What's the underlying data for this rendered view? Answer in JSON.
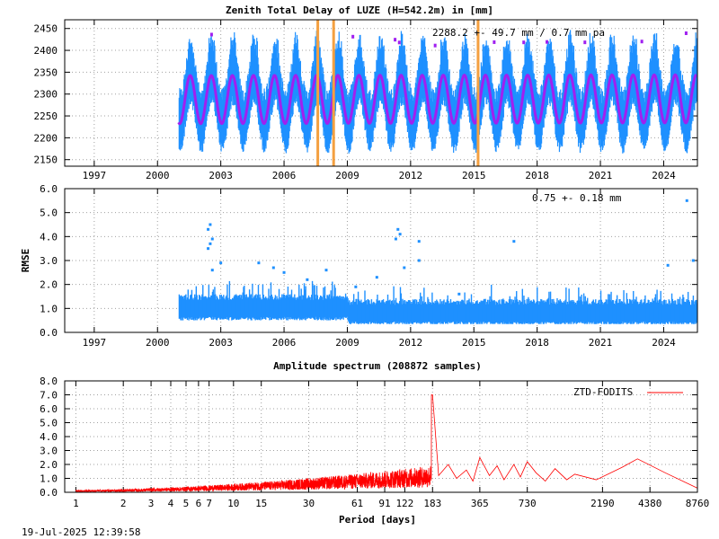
{
  "chart_data": [
    {
      "type": "scatter",
      "title": "Zenith Total Delay of LUZE (H=542.2m) in [mm]",
      "annotation": "2288.2 +-  49.7 mm /  0.7 mm pa",
      "xlim": [
        1995.6,
        2025.6
      ],
      "ylim": [
        2135,
        2470
      ],
      "xticks": [
        1997,
        2000,
        2003,
        2006,
        2009,
        2012,
        2015,
        2018,
        2021,
        2024
      ],
      "yticks": [
        2150,
        2200,
        2250,
        2300,
        2350,
        2400,
        2450
      ],
      "grid": true,
      "data_start": 2001.0,
      "data_end": 2025.55,
      "ztd_mean": 2288.2,
      "ztd_amplitude_mm": 49.7,
      "trend_mm_per_year": 0.7,
      "seasonal_fit_amplitude_mm": 55,
      "series": [
        {
          "values": "daily ZTD samples",
          "color": "#1e90ff"
        },
        {
          "values": "seasonal fit",
          "color": "#a020f0"
        }
      ],
      "events": [
        2007.6,
        2008.35,
        2015.2
      ],
      "event_color": "#f4a040"
    },
    {
      "type": "scatter",
      "ylabel": "RMSE",
      "annotation": "0.75 +-  0.18 mm",
      "xlim": [
        1995.6,
        2025.6
      ],
      "ylim": [
        0.0,
        6.0
      ],
      "xticks": [
        1997,
        2000,
        2003,
        2006,
        2009,
        2012,
        2015,
        2018,
        2021,
        2024
      ],
      "yticks": [
        "0.0",
        "1.0",
        "2.0",
        "3.0",
        "4.0",
        "5.0",
        "6.0"
      ],
      "grid": true,
      "mean_rmse": 0.75,
      "std_rmse": 0.18,
      "outliers": [
        [
          2002.5,
          4.5
        ],
        [
          2002.4,
          4.3
        ],
        [
          2002.6,
          3.9
        ],
        [
          2002.5,
          3.7
        ],
        [
          2002.4,
          3.5
        ],
        [
          2002.6,
          2.6
        ],
        [
          2003.0,
          2.9
        ],
        [
          2004.8,
          2.9
        ],
        [
          2005.5,
          2.7
        ],
        [
          2006.0,
          2.5
        ],
        [
          2007.1,
          2.2
        ],
        [
          2008.0,
          2.6
        ],
        [
          2010.4,
          2.3
        ],
        [
          2011.4,
          4.3
        ],
        [
          2011.5,
          4.1
        ],
        [
          2011.3,
          3.9
        ],
        [
          2011.7,
          2.7
        ],
        [
          2012.4,
          3.8
        ],
        [
          2012.4,
          3.0
        ],
        [
          2009.4,
          1.9
        ],
        [
          2016.9,
          3.8
        ],
        [
          2014.3,
          1.6
        ],
        [
          2024.2,
          2.8
        ],
        [
          2025.1,
          5.5
        ],
        [
          2025.4,
          3.0
        ]
      ],
      "series": [
        {
          "values": "daily RMSE samples",
          "color": "#1e90ff"
        }
      ]
    },
    {
      "type": "line",
      "title": "Amplitude spectrum (208872 samples)",
      "xlabel": "Period [days]",
      "x_scale": "log",
      "xlim": [
        0.85,
        8760
      ],
      "ylim": [
        0.0,
        8.0
      ],
      "xticks": [
        1,
        2,
        3,
        4,
        5,
        6,
        7,
        10,
        15,
        30,
        61,
        91,
        122,
        183,
        365,
        730,
        2190,
        4380,
        8760
      ],
      "yticks": [
        "0.0",
        "1.0",
        "2.0",
        "3.0",
        "4.0",
        "5.0",
        "6.0",
        "7.0",
        "8.0"
      ],
      "grid": true,
      "legend_position": "top-right",
      "series": [
        {
          "name": "ZTD-FODITS",
          "color": "#ff0000",
          "peaks": [
            [
              183,
              7.0
            ],
            [
              365,
              2.5
            ],
            [
              730,
              2.2
            ],
            [
              1095,
              1.7
            ],
            [
              1460,
              1.3
            ],
            [
              2920,
              1.8
            ],
            [
              3650,
              2.4
            ],
            [
              5475,
              1.4
            ],
            [
              8760,
              0.3
            ]
          ]
        }
      ]
    }
  ],
  "footer": {
    "timestamp": "19-Jul-2025 12:39:58"
  }
}
